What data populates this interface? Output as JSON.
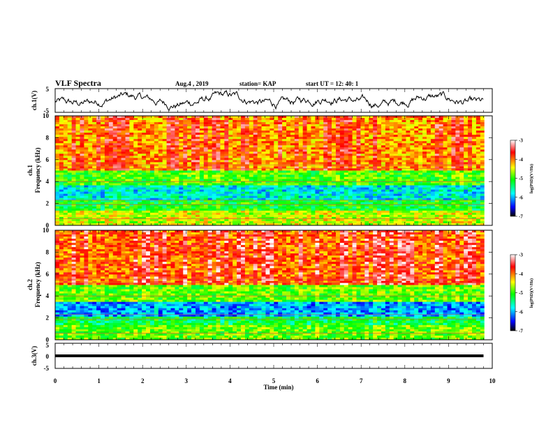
{
  "header": {
    "title": "VLF Spectra",
    "date": "Aug.4 , 2019",
    "station": "station= KAP",
    "start": "start UT = 12: 40: 1"
  },
  "colors": {
    "colormap": [
      "#000000",
      "#0000ff",
      "#00ffff",
      "#00ff00",
      "#ffff00",
      "#ff0000",
      "#ffffff"
    ],
    "waveform": "#000000"
  },
  "chart_data": [
    {
      "type": "line",
      "ylabel": "ch.1(V)",
      "ylim": [
        -5,
        5
      ],
      "yticks": [
        "5",
        "-5"
      ],
      "xlim": [
        0,
        10
      ],
      "description_series": "noisy waveform centered near 0 V"
    },
    {
      "type": "heatmap",
      "ylabel_channel": "ch.1",
      "ylabel": "Frequency (kHz)",
      "ylim": [
        0,
        10
      ],
      "yticks": [
        "0",
        "2",
        "4",
        "6",
        "8",
        "10"
      ],
      "xlim": [
        0,
        10
      ],
      "colorbar": {
        "label": "log(PSD)(V²/Hz)",
        "range": [
          -7,
          -3
        ],
        "ticks": [
          "-3",
          "-4",
          "-5",
          "-6",
          "-7"
        ]
      },
      "bands": [
        {
          "from_khz": 0,
          "to_khz": 1.3,
          "level": -4.6
        },
        {
          "from_khz": 1.3,
          "to_khz": 2.3,
          "level": -5.2
        },
        {
          "from_khz": 2.3,
          "to_khz": 3.6,
          "level": -5.8
        },
        {
          "from_khz": 3.6,
          "to_khz": 5.0,
          "level": -5.0
        },
        {
          "from_khz": 5.0,
          "to_khz": 10.0,
          "level": -4.1
        }
      ]
    },
    {
      "type": "heatmap",
      "ylabel_channel": "ch.2",
      "ylabel": "Frequency (kHz)",
      "ylim": [
        0,
        10
      ],
      "yticks": [
        "0",
        "2",
        "4",
        "6",
        "8",
        "10"
      ],
      "xlim": [
        0,
        10
      ],
      "colorbar": {
        "label": "log(PSD)(V²/Hz)",
        "range": [
          -7,
          -3
        ],
        "ticks": [
          "-3",
          "-4",
          "-5",
          "-6",
          "-7"
        ]
      },
      "bands": [
        {
          "from_khz": 0,
          "to_khz": 1.3,
          "level": -4.9
        },
        {
          "from_khz": 1.3,
          "to_khz": 2.2,
          "level": -5.3
        },
        {
          "from_khz": 2.2,
          "to_khz": 3.4,
          "level": -6.1
        },
        {
          "from_khz": 3.4,
          "to_khz": 5.0,
          "level": -4.9
        },
        {
          "from_khz": 5.0,
          "to_khz": 10.0,
          "level": -3.9
        }
      ]
    },
    {
      "type": "line",
      "ylabel": "ch.3(V)",
      "ylim": [
        -5,
        5
      ],
      "yticks": [
        "5",
        "0",
        "-5"
      ],
      "xlim": [
        0,
        10
      ],
      "x": [
        0,
        9.8
      ],
      "y": [
        0,
        0
      ],
      "xlabel": "Time (min)",
      "xticks": [
        "0",
        "1",
        "2",
        "3",
        "4",
        "5",
        "6",
        "7",
        "8",
        "9",
        "10"
      ]
    }
  ]
}
